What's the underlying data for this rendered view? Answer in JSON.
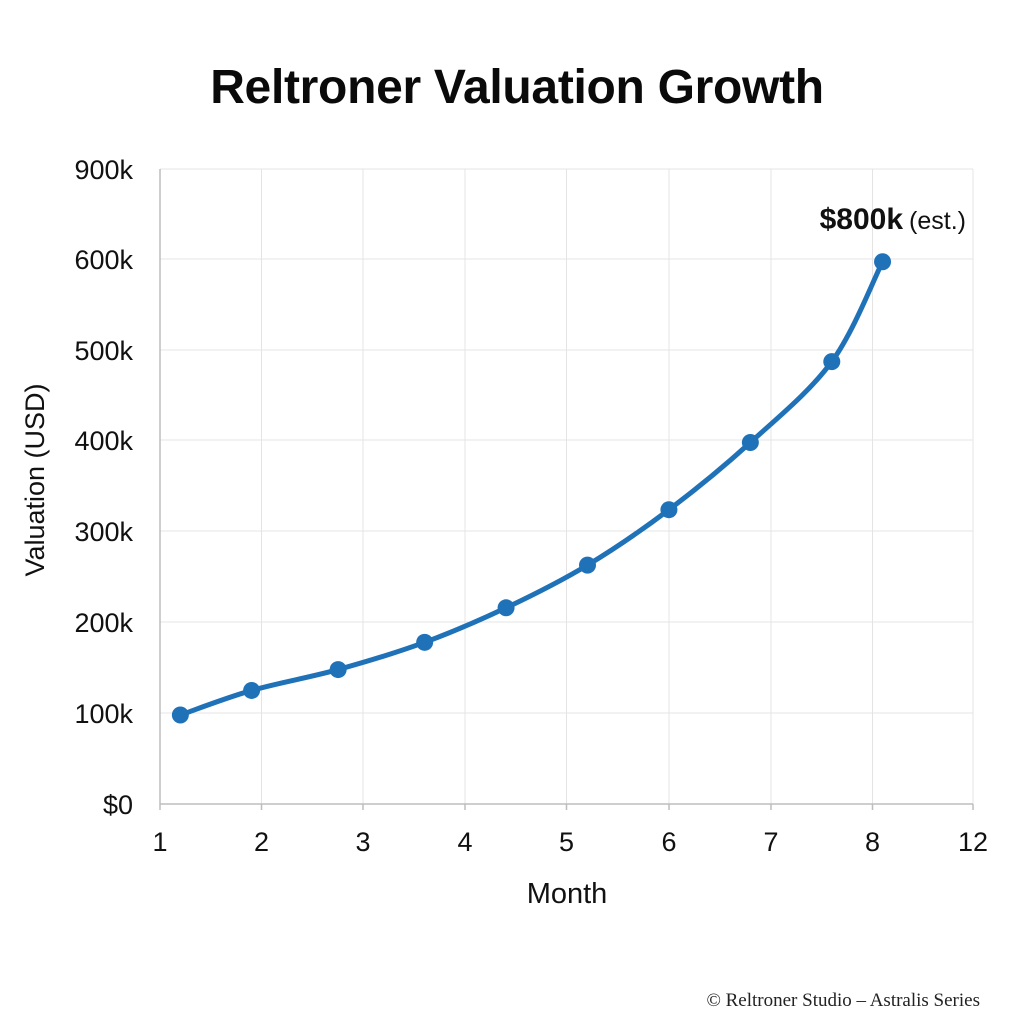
{
  "chart_data": {
    "type": "line",
    "title": "Reltroner Valuation Growth",
    "xlabel": "Month",
    "ylabel": "Valuation (USD)",
    "x_ticks": [
      "1",
      "2",
      "3",
      "4",
      "5",
      "6",
      "7",
      "8",
      "12"
    ],
    "y_ticks": [
      {
        "label": "$0",
        "value": 0
      },
      {
        "label": "100k",
        "value": 100000
      },
      {
        "label": "200k",
        "value": 200000
      },
      {
        "label": "300k",
        "value": 300000
      },
      {
        "label": "400k",
        "value": 400000
      },
      {
        "label": "500k",
        "value": 500000
      },
      {
        "label": "600k",
        "value": 600000
      },
      {
        "label": "900k",
        "value": 900000
      }
    ],
    "series": [
      {
        "color": "#1f72b8",
        "points": [
          {
            "x": 1.2,
            "y": 98000
          },
          {
            "x": 1.9,
            "y": 125000
          },
          {
            "x": 2.75,
            "y": 148000
          },
          {
            "x": 3.6,
            "y": 178000
          },
          {
            "x": 4.4,
            "y": 216000
          },
          {
            "x": 5.2,
            "y": 263000
          },
          {
            "x": 6.0,
            "y": 324000
          },
          {
            "x": 6.8,
            "y": 398000
          },
          {
            "x": 7.6,
            "y": 487000
          },
          {
            "x": 8.4,
            "y": 597000
          }
        ]
      }
    ],
    "annotation": {
      "value": "$800k",
      "note": "(est.)"
    },
    "grid": true
  },
  "footer": {
    "copyright": "© Reltroner Studio – Astralis Series"
  }
}
